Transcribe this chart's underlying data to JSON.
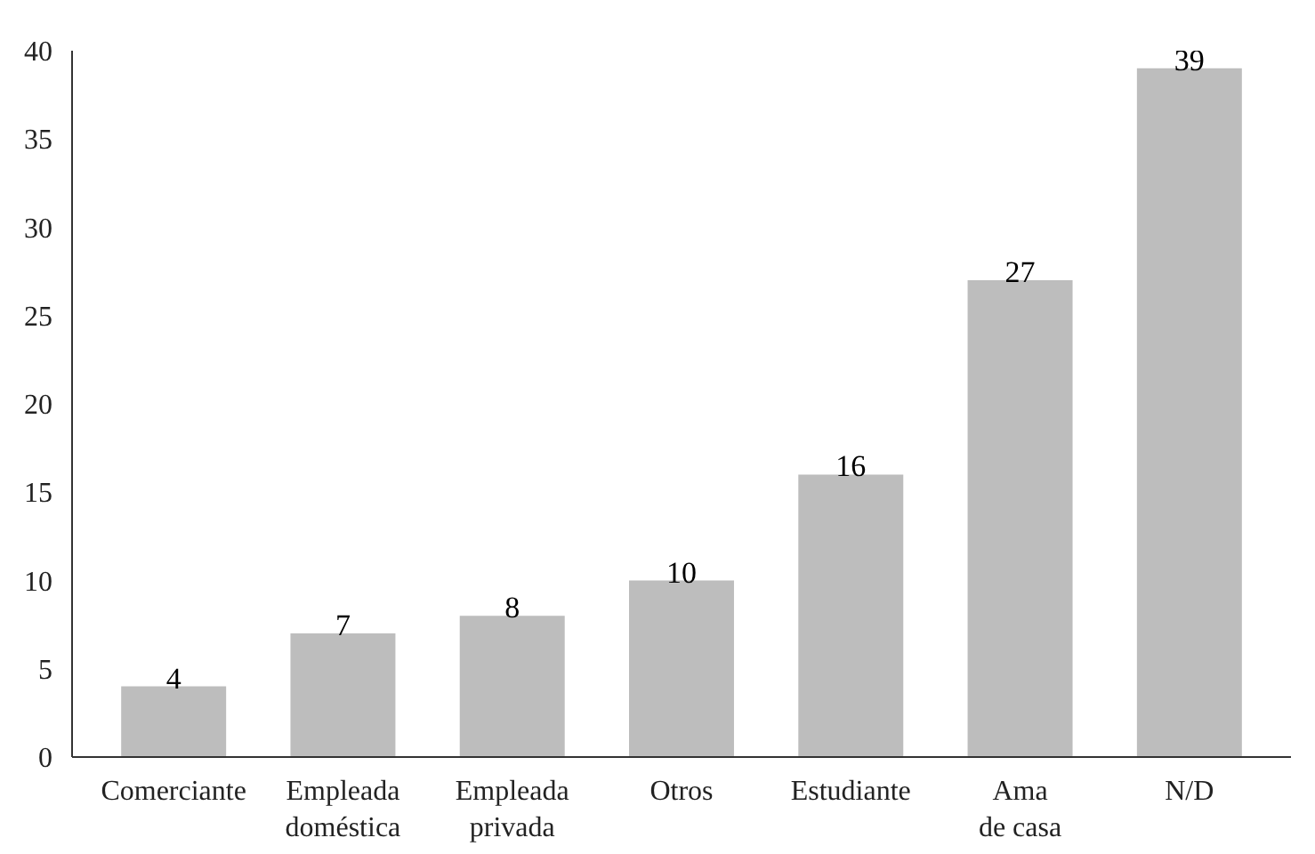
{
  "chart_data": {
    "type": "bar",
    "categories": [
      "Comerciante",
      "Empleada\ndoméstica",
      "Empleada\nprivada",
      "Otros",
      "Estudiante",
      "Ama\nde casa",
      "N/D"
    ],
    "values": [
      4,
      7,
      8,
      10,
      16,
      27,
      39
    ],
    "color": "#bdbdbd",
    "ylim": [
      0,
      40
    ],
    "yticks": [
      0,
      5,
      10,
      15,
      20,
      25,
      30,
      35,
      40
    ],
    "data_labels": true,
    "grid": false
  }
}
